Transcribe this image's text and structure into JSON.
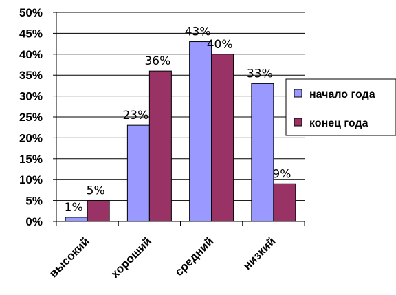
{
  "chart_data": {
    "type": "bar",
    "categories": [
      "высокий",
      "хороший",
      "средний",
      "низкий"
    ],
    "series": [
      {
        "name": "начало года",
        "values": [
          1,
          23,
          43,
          33
        ],
        "labels": [
          "1%",
          "23%",
          "43%",
          "33%"
        ],
        "color": "#9999ff"
      },
      {
        "name": "конец года",
        "values": [
          5,
          36,
          40,
          9
        ],
        "labels": [
          "5%",
          "36%",
          "40%",
          "9%"
        ],
        "color": "#993366"
      }
    ],
    "ylim": [
      0,
      50
    ],
    "ytick_labels": [
      "0%",
      "5%",
      "10%",
      "15%",
      "20%",
      "25%",
      "30%",
      "35%",
      "40%",
      "45%",
      "50%"
    ],
    "grid": true,
    "legend": "right",
    "title": "",
    "xlabel": "",
    "ylabel": ""
  }
}
